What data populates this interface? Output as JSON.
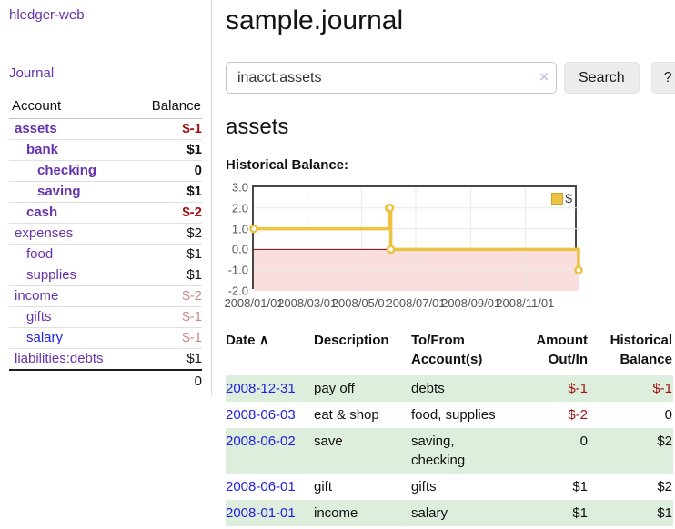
{
  "colors": {
    "accent_purple": "#6633aa",
    "link_blue": "#2222dd",
    "negative_red": "#a11111",
    "soft_negative_red": "#c98888",
    "series_gold": "#edc240",
    "stripe_green": "#ddeedd",
    "negative_area_pink": "#fadddd",
    "zero_line_red": "#8b0000"
  },
  "sidebar": {
    "brand": "hledger-web",
    "journal_link": "Journal",
    "accounts": {
      "headers": {
        "account": "Account",
        "balance": "Balance"
      },
      "rows": [
        {
          "name": "assets",
          "balance": "$-1"
        },
        {
          "name": "bank",
          "balance": "$1"
        },
        {
          "name": "checking",
          "balance": "0"
        },
        {
          "name": "saving",
          "balance": "$1"
        },
        {
          "name": "cash",
          "balance": "$-2"
        },
        {
          "name": "expenses",
          "balance": "$2"
        },
        {
          "name": "food",
          "balance": "$1"
        },
        {
          "name": "supplies",
          "balance": "$1"
        },
        {
          "name": "income",
          "balance": "$-2"
        },
        {
          "name": "gifts",
          "balance": "$-1"
        },
        {
          "name": "salary",
          "balance": "$-1"
        },
        {
          "name": "liabilities:debts",
          "balance": "$1"
        }
      ],
      "total": "0"
    }
  },
  "main": {
    "title": "sample.journal",
    "search": {
      "value": "inacct:assets",
      "clear_icon": "×",
      "search_button": "Search",
      "help_button": "?"
    },
    "account_heading": "assets",
    "chart_title": "Historical Balance:"
  },
  "chart_data": {
    "type": "line",
    "title": "Historical Balance:",
    "step": true,
    "series": [
      {
        "name": "$",
        "color": "#edc240",
        "points": [
          [
            "2008-01-01",
            1
          ],
          [
            "2008-06-01",
            2
          ],
          [
            "2008-06-02",
            2
          ],
          [
            "2008-06-03",
            0
          ],
          [
            "2008-12-31",
            -1
          ]
        ]
      }
    ],
    "xrange": [
      "2008-01-01",
      "2008-12-31"
    ],
    "xticks": [
      "2008/01/01",
      "2008/03/01",
      "2008/05/01",
      "2008/07/01",
      "2008/09/01",
      "2008/11/01"
    ],
    "yticks": [
      "3.0",
      "2.0",
      "1.0",
      "0.0",
      "-1.0",
      "-2.0"
    ],
    "ylim": [
      -2,
      3
    ],
    "grid": true,
    "legend_position": "top-right"
  },
  "register": {
    "headers": {
      "date": "Date",
      "sort_indicator": "∧",
      "description": "Description",
      "accounts": "To/From Account(s)",
      "amount": "Amount Out/In",
      "balance": "Historical Balance"
    },
    "rows": [
      {
        "date": "2008-12-31",
        "description": "pay off",
        "accounts": "debts",
        "amount": "$-1",
        "balance": "$-1"
      },
      {
        "date": "2008-06-03",
        "description": "eat & shop",
        "accounts": "food, supplies",
        "amount": "$-2",
        "balance": "0"
      },
      {
        "date": "2008-06-02",
        "description": "save",
        "accounts": "saving, checking",
        "amount": "0",
        "balance": "$2"
      },
      {
        "date": "2008-06-01",
        "description": "gift",
        "accounts": "gifts",
        "amount": "$1",
        "balance": "$2"
      },
      {
        "date": "2008-01-01",
        "description": "income",
        "accounts": "salary",
        "amount": "$1",
        "balance": "$1"
      }
    ]
  }
}
